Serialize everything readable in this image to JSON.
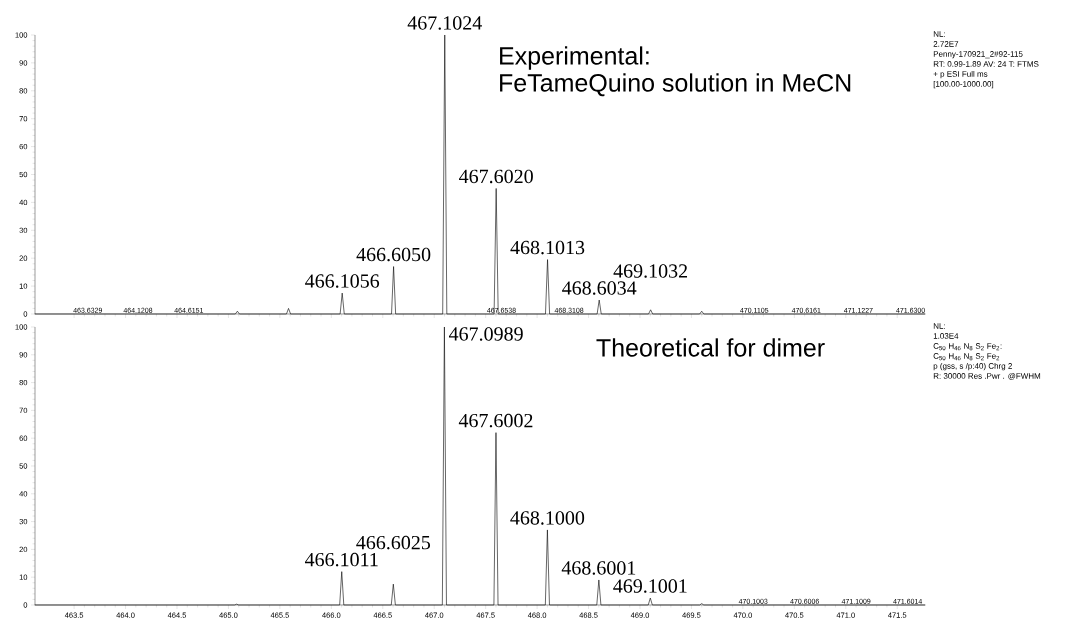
{
  "chart_data": [
    {
      "type": "line",
      "title": "Experimental:",
      "subtitle": "FeTameQuino solution in MeCN",
      "color": "#000000",
      "x": [
        463.12,
        465.067,
        465.087,
        465.107,
        465.564,
        465.584,
        465.604,
        466.0856,
        466.1056,
        466.1256,
        466.585,
        466.605,
        466.625,
        467.0824,
        467.1024,
        467.1224,
        467.582,
        467.602,
        467.622,
        468.0813,
        468.1013,
        468.1213,
        468.5834,
        468.6034,
        468.6234,
        469.0832,
        469.1032,
        469.1232,
        469.58,
        469.6,
        469.62,
        471.77
      ],
      "values": [
        0,
        0,
        1,
        0,
        0,
        2,
        0,
        0,
        7.5,
        0,
        0,
        17,
        0,
        0,
        100,
        0,
        0,
        45,
        0,
        0,
        19.5,
        0,
        0,
        5,
        0,
        0,
        1.5,
        0,
        0,
        1,
        0,
        0
      ],
      "xlim": [
        463.12,
        471.77
      ],
      "ylim": [
        0,
        100
      ],
      "xticks": [
        463.5,
        464,
        464.5,
        465,
        465.5,
        466,
        466.5,
        467,
        467.5,
        468,
        468.5,
        469,
        469.5,
        470,
        470.5,
        471,
        471.5
      ],
      "yticks": [
        0,
        10,
        20,
        30,
        40,
        50,
        60,
        70,
        80,
        90,
        100
      ],
      "tick_labels": "y",
      "annotations": [
        {
          "text": "463.6329",
          "x": 463.6329,
          "y": 0
        },
        {
          "text": "464.1208",
          "x": 464.1208,
          "y": 0
        },
        {
          "text": "464.6151",
          "x": 464.6151,
          "y": 0
        },
        {
          "text": "466.1056",
          "x": 466.1056,
          "y": 7.5
        },
        {
          "text": "466.6050",
          "x": 466.605,
          "y": 17
        },
        {
          "text": "467.1024",
          "x": 467.1024,
          "y": 100
        },
        {
          "text": "467.6020",
          "x": 467.602,
          "y": 45
        },
        {
          "text": "467.6538",
          "x": 467.6538,
          "y": 0
        },
        {
          "text": "468.1013",
          "x": 468.1013,
          "y": 19.5
        },
        {
          "text": "468.3108",
          "x": 468.3108,
          "y": 0
        },
        {
          "text": "468.6034",
          "x": 468.6034,
          "y": 5
        },
        {
          "text": "469.1032",
          "x": 469.1032,
          "y": 1.5
        },
        {
          "text": "470.1105",
          "x": 470.1105,
          "y": 0
        },
        {
          "text": "470.6161",
          "x": 470.6161,
          "y": 0
        },
        {
          "text": "471.1227",
          "x": 471.1227,
          "y": 0
        },
        {
          "text": "471.6300",
          "x": 471.63,
          "y": 0
        },
        "NL:",
        "2.72E7",
        "Penny-170921_2#92-115",
        "RT: 0.99-1.89  AV: 24 T: FTMS",
        "+ p ESI Full ms",
        "[100.00-1000.00]"
      ]
    },
    {
      "type": "line",
      "title": "Theoretical for dimer",
      "color": "#000000",
      "x": [
        463.12,
        465.06,
        465.08,
        465.1,
        466.0811,
        466.1011,
        466.1211,
        466.5825,
        466.6025,
        466.6225,
        467.0789,
        467.0989,
        467.1189,
        467.5802,
        467.6002,
        467.6202,
        468.08,
        468.1,
        468.12,
        468.5801,
        468.6001,
        468.6201,
        469.0801,
        469.1001,
        469.1201,
        469.58,
        469.6,
        469.62,
        471.77
      ],
      "values": [
        0,
        0,
        0.3,
        0,
        0,
        12,
        0,
        0,
        7.5,
        0,
        0,
        100,
        0,
        0,
        62,
        0,
        0,
        27,
        0,
        0,
        9,
        0,
        0,
        2.5,
        0,
        0,
        0.5,
        0,
        0
      ],
      "xlim": [
        463.12,
        471.77
      ],
      "ylim": [
        0,
        100
      ],
      "xticks": [
        463.5,
        {
          "value": 464,
          "label": "464.0"
        },
        464.5,
        {
          "value": 465,
          "label": "465.0"
        },
        465.5,
        {
          "value": 466,
          "label": "466.0"
        },
        466.5,
        {
          "value": 467,
          "label": "467.0"
        },
        467.5,
        {
          "value": 468,
          "label": "468.0"
        },
        468.5,
        {
          "value": 469,
          "label": "469.0"
        },
        469.5,
        {
          "value": 470,
          "label": "470.0"
        },
        470.5,
        {
          "value": 471,
          "label": "471.0"
        },
        471.5
      ],
      "yticks": [
        0,
        10,
        20,
        30,
        40,
        50,
        60,
        70,
        80,
        90,
        100
      ],
      "annotations": [
        {
          "text": "466.1011",
          "x": 466.1011,
          "y": 12
        },
        {
          "text": "466.6025",
          "x": 466.6025,
          "y": 7.5
        },
        {
          "text": "467.0989",
          "x": 467.0989,
          "y": 100
        },
        {
          "text": "467.6002",
          "x": 467.6002,
          "y": 62
        },
        {
          "text": "468.1000",
          "x": 468.1,
          "y": 27
        },
        {
          "text": "468.6001",
          "x": 468.6001,
          "y": 9
        },
        {
          "text": "469.1001",
          "x": 469.1001,
          "y": 2.5
        },
        {
          "text": "470.1003",
          "x": 470.1003,
          "y": 0
        },
        {
          "text": "470.6006",
          "x": 470.6006,
          "y": 0
        },
        {
          "text": "471.1009",
          "x": 471.1009,
          "y": 0
        },
        {
          "text": "471.6014",
          "x": 471.6014,
          "y": 0
        },
        "NL:",
        "1.03E4",
        "C$_{50}$ H$_{46}$ N$_{8}$ S$_{2}$ Fe$_{2}$:",
        "C$_{50}$ H$_{46}$ N$_{8}$ S$_{2}$ Fe$_{2}$",
        "p (gss, s /p:40) Chrg 2",
        "R: 30000 Res .Pwr . @FWHM"
      ]
    }
  ]
}
